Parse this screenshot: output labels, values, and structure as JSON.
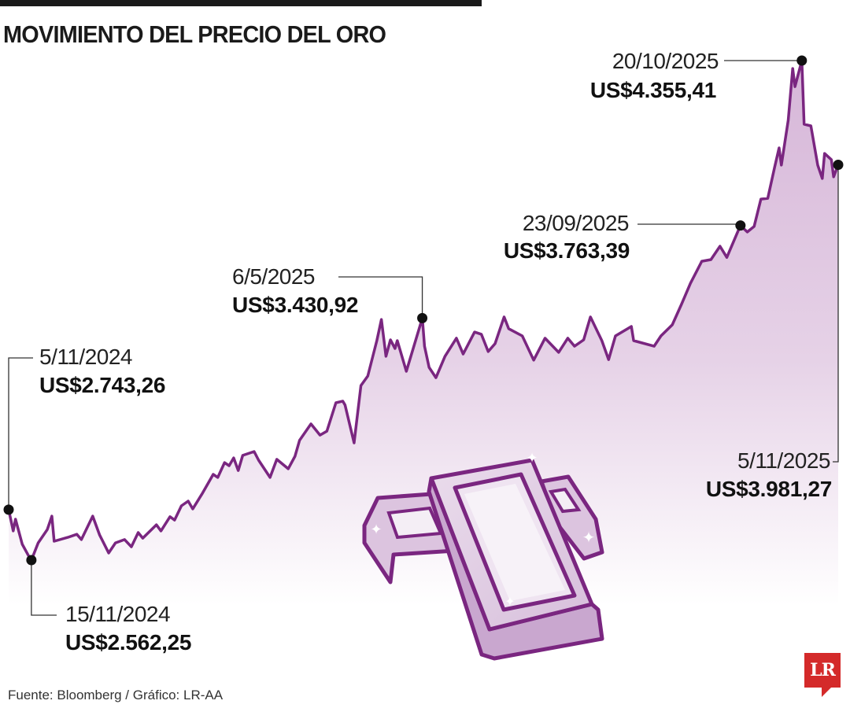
{
  "chart_data": {
    "type": "area",
    "title": "MOVIMIENTO DEL PRECIO DEL ORO",
    "xlabel": "",
    "ylabel": "",
    "grid": false,
    "colors": {
      "line": "#7a2680",
      "fill_top": "#d6b6d8",
      "fill_bottom": "#ffffff",
      "text": "#1a1a1a",
      "logo": "#d42a2a"
    },
    "series": [
      {
        "points": [
          [
            "2024-11-05",
            2743.26
          ],
          [
            "2024-11-07",
            2667
          ],
          [
            "2024-11-08",
            2709
          ],
          [
            "2024-11-11",
            2619
          ],
          [
            "2024-11-14",
            2574
          ],
          [
            "2024-11-15",
            2562.25
          ],
          [
            "2024-11-18",
            2624
          ],
          [
            "2024-11-22",
            2672
          ],
          [
            "2024-11-24",
            2720
          ],
          [
            "2024-11-25",
            2630
          ],
          [
            "2024-12-01",
            2644
          ],
          [
            "2024-12-05",
            2655
          ],
          [
            "2024-12-07",
            2636
          ],
          [
            "2024-12-12",
            2720
          ],
          [
            "2024-12-15",
            2653
          ],
          [
            "2024-12-19",
            2588
          ],
          [
            "2024-12-22",
            2624
          ],
          [
            "2024-12-26",
            2636
          ],
          [
            "2024-12-29",
            2610
          ],
          [
            "2025-01-01",
            2661
          ],
          [
            "2025-01-03",
            2641
          ],
          [
            "2025-01-09",
            2689
          ],
          [
            "2025-01-11",
            2667
          ],
          [
            "2025-01-15",
            2718
          ],
          [
            "2025-01-17",
            2706
          ],
          [
            "2025-01-20",
            2757
          ],
          [
            "2025-01-23",
            2774
          ],
          [
            "2025-01-25",
            2746
          ],
          [
            "2025-01-29",
            2799
          ],
          [
            "2025-02-03",
            2870
          ],
          [
            "2025-02-05",
            2859
          ],
          [
            "2025-02-08",
            2912
          ],
          [
            "2025-02-10",
            2901
          ],
          [
            "2025-02-12",
            2929
          ],
          [
            "2025-02-14",
            2884
          ],
          [
            "2025-02-16",
            2938
          ],
          [
            "2025-02-21",
            2952
          ],
          [
            "2025-02-23",
            2921
          ],
          [
            "2025-02-28",
            2859
          ],
          [
            "2025-03-03",
            2924
          ],
          [
            "2025-03-08",
            2890
          ],
          [
            "2025-03-11",
            2935
          ],
          [
            "2025-03-13",
            2992
          ],
          [
            "2025-03-18",
            3051
          ],
          [
            "2025-03-22",
            3011
          ],
          [
            "2025-03-25",
            3025
          ],
          [
            "2025-03-29",
            3127
          ],
          [
            "2025-04-01",
            3133
          ],
          [
            "2025-04-02",
            3119
          ],
          [
            "2025-04-06",
            2983
          ],
          [
            "2025-04-09",
            3189
          ],
          [
            "2025-04-12",
            3223
          ],
          [
            "2025-04-16",
            3350
          ],
          [
            "2025-04-18",
            3426
          ],
          [
            "2025-04-20",
            3294
          ],
          [
            "2025-04-22",
            3353
          ],
          [
            "2025-04-24",
            3322
          ],
          [
            "2025-04-25",
            3350
          ],
          [
            "2025-04-29",
            3240
          ],
          [
            "2025-05-06",
            3430.92
          ],
          [
            "2025-05-07",
            3330
          ],
          [
            "2025-05-09",
            3254
          ],
          [
            "2025-05-12",
            3217
          ],
          [
            "2025-05-16",
            3294
          ],
          [
            "2025-05-21",
            3359
          ],
          [
            "2025-05-24",
            3302
          ],
          [
            "2025-05-29",
            3381
          ],
          [
            "2025-06-01",
            3373
          ],
          [
            "2025-06-04",
            3311
          ],
          [
            "2025-06-07",
            3339
          ],
          [
            "2025-06-11",
            3435
          ],
          [
            "2025-06-13",
            3393
          ],
          [
            "2025-06-19",
            3367
          ],
          [
            "2025-06-24",
            3280
          ],
          [
            "2025-06-29",
            3359
          ],
          [
            "2025-07-05",
            3308
          ],
          [
            "2025-07-09",
            3359
          ],
          [
            "2025-07-12",
            3330
          ],
          [
            "2025-07-16",
            3353
          ],
          [
            "2025-07-19",
            3435
          ],
          [
            "2025-07-24",
            3350
          ],
          [
            "2025-07-27",
            3282
          ],
          [
            "2025-07-30",
            3367
          ],
          [
            "2025-08-06",
            3401
          ],
          [
            "2025-08-07",
            3350
          ],
          [
            "2025-08-16",
            3330
          ],
          [
            "2025-08-19",
            3367
          ],
          [
            "2025-08-24",
            3407
          ],
          [
            "2025-08-28",
            3480
          ],
          [
            "2025-09-01",
            3556
          ],
          [
            "2025-09-06",
            3635
          ],
          [
            "2025-09-10",
            3641
          ],
          [
            "2025-09-14",
            3689
          ],
          [
            "2025-09-17",
            3649
          ],
          [
            "2025-09-23",
            3763.39
          ],
          [
            "2025-09-26",
            3740
          ],
          [
            "2025-09-29",
            3760
          ],
          [
            "2025-10-02",
            3858
          ],
          [
            "2025-10-05",
            3861
          ],
          [
            "2025-10-08",
            3971
          ],
          [
            "2025-10-10",
            4042
          ],
          [
            "2025-10-11",
            3980
          ],
          [
            "2025-10-14",
            4141
          ],
          [
            "2025-10-16",
            4327
          ],
          [
            "2025-10-17",
            4262
          ],
          [
            "2025-10-20",
            4355.41
          ],
          [
            "2025-10-21",
            4127
          ],
          [
            "2025-10-24",
            4121
          ],
          [
            "2025-10-27",
            3980
          ],
          [
            "2025-10-29",
            3932
          ],
          [
            "2025-10-30",
            4022
          ],
          [
            "2025-11-02",
            4000
          ],
          [
            "2025-11-03",
            3938
          ],
          [
            "2025-11-05",
            3981.27
          ]
        ]
      }
    ],
    "annotations": [
      {
        "date_label": "5/11/2024",
        "value_label": "US$2.743,26",
        "date": "2024-11-05",
        "value": 2743.26
      },
      {
        "date_label": "15/11/2024",
        "value_label": "US$2.562,25",
        "date": "2024-11-15",
        "value": 2562.25
      },
      {
        "date_label": "6/5/2025",
        "value_label": "US$3.430,92",
        "date": "2025-05-06",
        "value": 3430.92
      },
      {
        "date_label": "23/09/2025",
        "value_label": "US$3.763,39",
        "date": "2025-09-23",
        "value": 3763.39
      },
      {
        "date_label": "20/10/2025",
        "value_label": "US$4.355,41",
        "date": "2025-10-20",
        "value": 4355.41
      },
      {
        "date_label": "5/11/2025",
        "value_label": "US$3.981,27",
        "date": "2025-11-05",
        "value": 3981.27
      }
    ],
    "source": "Fuente: Bloomberg / Gráfico: LR-AA",
    "logo_text": "LR",
    "illustration": "gold-bars"
  }
}
